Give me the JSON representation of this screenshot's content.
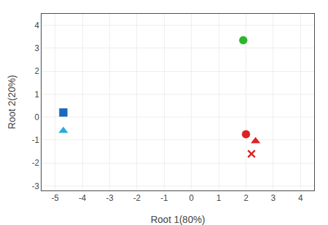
{
  "chart_data": {
    "type": "scatter",
    "xlabel": "Root 1(80%)",
    "ylabel": "Root 2(20%)",
    "series": [
      {
        "x": [
          1.9
        ],
        "values": [
          3.35
        ],
        "color": "#2db52d",
        "marker": "circle"
      },
      {
        "x": [
          -4.7
        ],
        "values": [
          0.2
        ],
        "color": "#1a6abf",
        "marker": "square"
      },
      {
        "x": [
          -4.7
        ],
        "values": [
          -0.6
        ],
        "color": "#29aadd",
        "marker": "triangle"
      },
      {
        "x": [
          2.0
        ],
        "values": [
          -0.75
        ],
        "color": "#dd2222",
        "marker": "circle"
      },
      {
        "x": [
          2.35
        ],
        "values": [
          -1.05
        ],
        "color": "#dd2222",
        "marker": "triangle"
      },
      {
        "x": [
          2.2
        ],
        "values": [
          -1.6
        ],
        "color": "#dd2222",
        "marker": "x"
      }
    ],
    "xlim": [
      -5.5,
      4.5
    ],
    "ylim": [
      -3.2,
      4.5
    ],
    "xticks": [
      -5,
      -4,
      -3,
      -2,
      -1,
      0,
      1,
      2,
      3,
      4
    ],
    "yticks": [
      -3,
      -2,
      -1,
      0,
      1,
      2,
      3,
      4
    ],
    "grid": true
  }
}
